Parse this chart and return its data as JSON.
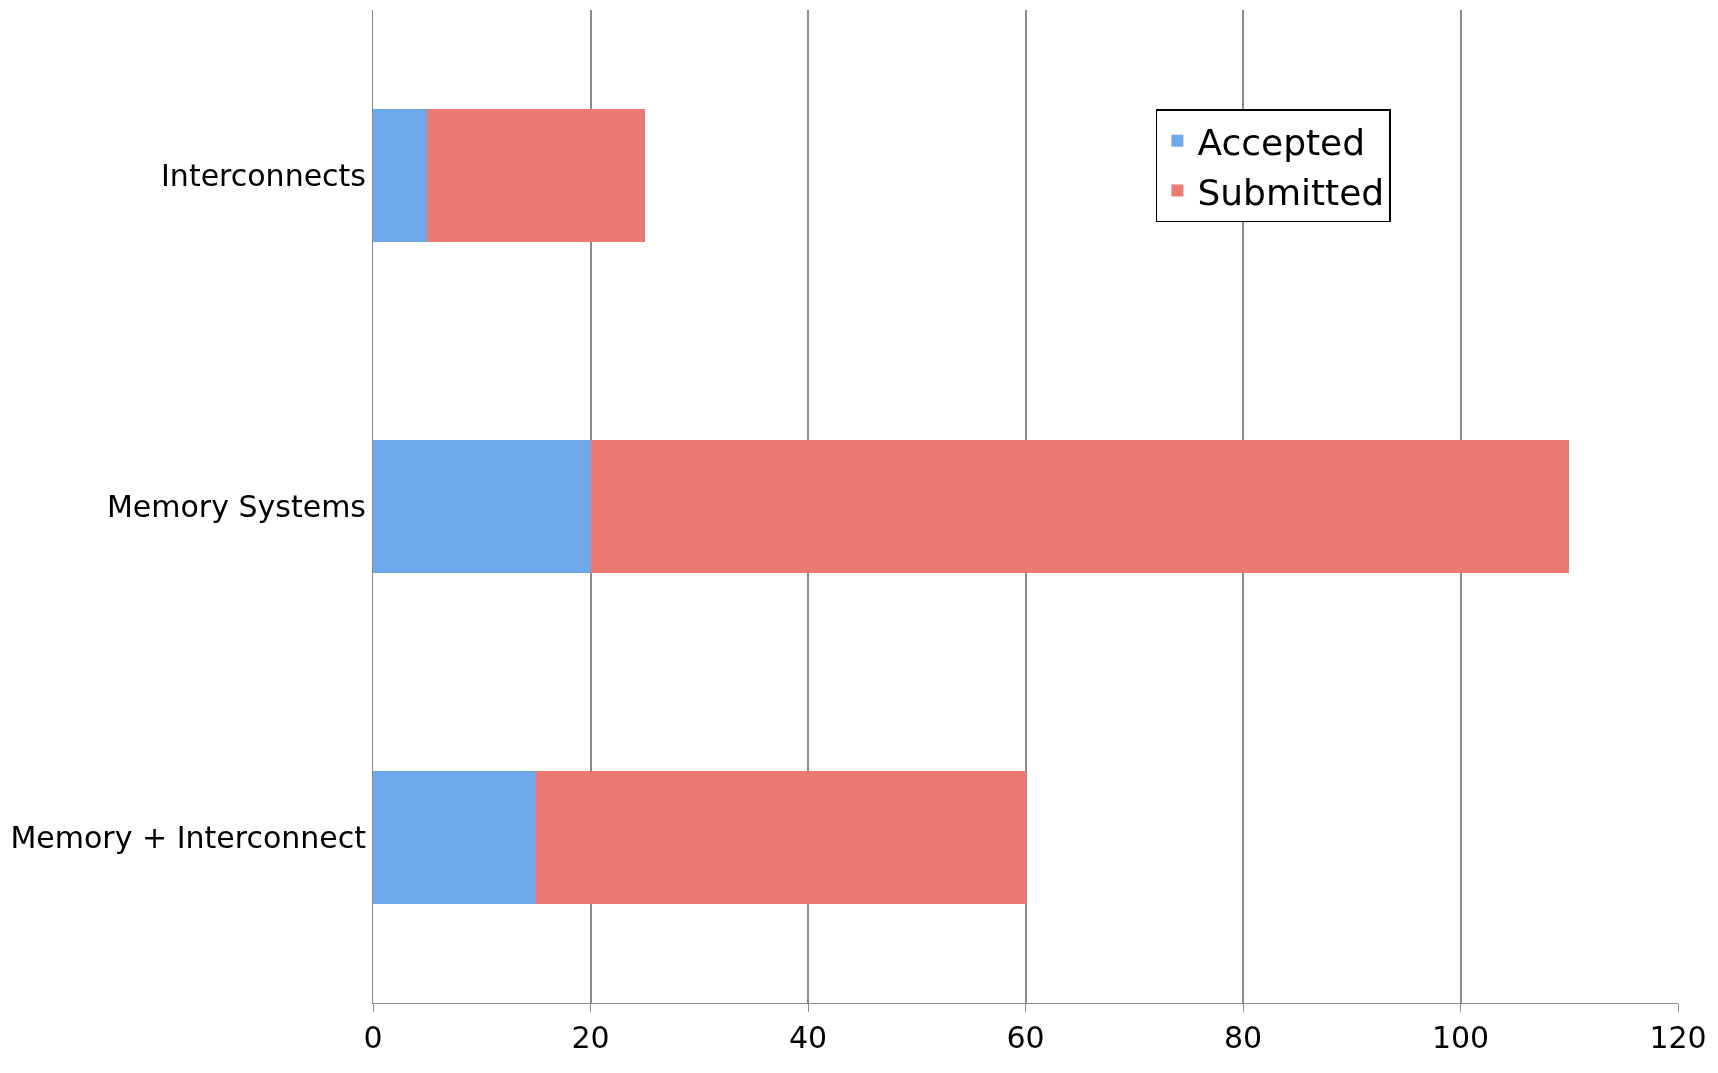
{
  "chart_data": {
    "type": "bar",
    "orientation": "horizontal",
    "stacked": true,
    "categories": [
      "Interconnects",
      "Memory Systems",
      "Memory + Interconnect"
    ],
    "series": [
      {
        "name": "Accepted",
        "color": "#6fa8e8",
        "values": [
          5,
          20,
          15
        ]
      },
      {
        "name": "Submitted",
        "color": "#ec7a72",
        "values": [
          20,
          90,
          45
        ]
      }
    ],
    "xlim": [
      0,
      120
    ],
    "xticks": [
      0,
      20,
      40,
      60,
      80,
      100,
      120
    ],
    "grid": "x",
    "legend": "top right"
  }
}
